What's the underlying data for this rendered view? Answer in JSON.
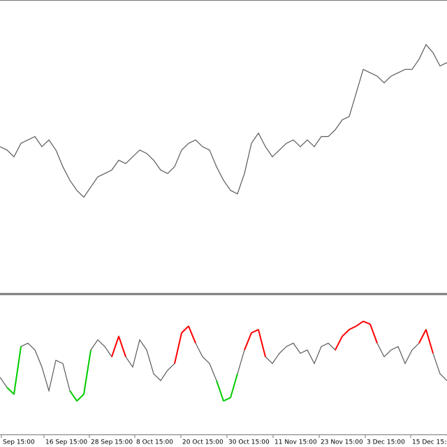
{
  "chart_data": [
    {
      "type": "line",
      "color": "#5a5a5a",
      "xlim": [
        0,
        64
      ],
      "ylim": [
        0,
        100
      ],
      "values": [
        50,
        48.8,
        46.4,
        51.2,
        52.4,
        53.6,
        50,
        52.4,
        48.8,
        42.9,
        38.1,
        34.5,
        32.1,
        35.7,
        39.3,
        40.5,
        41.7,
        45.2,
        44,
        46.4,
        48.8,
        47.6,
        45.2,
        41.7,
        40.5,
        42.9,
        48.8,
        51.2,
        52.4,
        50,
        48.8,
        42.9,
        38.1,
        34.5,
        33.3,
        40.5,
        51.2,
        54.8,
        50,
        46.4,
        48.8,
        51.2,
        52.4,
        50,
        52.4,
        50,
        53.6,
        53.6,
        56,
        59.5,
        60.7,
        69,
        77.4,
        76.2,
        75,
        72.6,
        75,
        76.2,
        77.4,
        77.4,
        81,
        86.2,
        83.3,
        78.6,
        79.8
      ]
    },
    {
      "type": "line",
      "color": "#5a5a5a",
      "xlim": [
        0,
        64
      ],
      "ylim": [
        0,
        100
      ],
      "values": [
        41,
        33.3,
        28.2,
        64.1,
        66.7,
        61.5,
        48.7,
        30.8,
        53.8,
        51.3,
        30.8,
        23.1,
        28.2,
        61.5,
        69.2,
        64.1,
        56.4,
        71.8,
        56.4,
        48.7,
        69.2,
        61.5,
        43.6,
        38.5,
        46.2,
        51.3,
        74.4,
        79.5,
        66.7,
        56.4,
        51.3,
        38.5,
        23.1,
        25.6,
        43.6,
        61.5,
        74.4,
        76.9,
        56.4,
        51.3,
        59,
        64.1,
        66.7,
        59,
        61.5,
        51.3,
        64.1,
        66.7,
        61.5,
        71.8,
        76.9,
        79.5,
        83.1,
        81,
        66.7,
        56.4,
        61.5,
        64.1,
        51.3,
        61.5,
        66.7,
        76.9,
        59,
        43.6,
        38.5
      ],
      "point_colors": [
        "#5a5a5a",
        "#5a5a5a",
        "#00cc00",
        "#5a5a5a",
        "#5a5a5a",
        "#5a5a5a",
        "#5a5a5a",
        "#5a5a5a",
        "#5a5a5a",
        "#5a5a5a",
        "#5a5a5a",
        "#00cc00",
        "#00cc00",
        "#5a5a5a",
        "#5a5a5a",
        "#5a5a5a",
        "#5a5a5a",
        "#ff0000",
        "#5a5a5a",
        "#5a5a5a",
        "#5a5a5a",
        "#5a5a5a",
        "#5a5a5a",
        "#5a5a5a",
        "#5a5a5a",
        "#5a5a5a",
        "#ff0000",
        "#ff0000",
        "#5a5a5a",
        "#5a5a5a",
        "#5a5a5a",
        "#5a5a5a",
        "#00cc00",
        "#00cc00",
        "#5a5a5a",
        "#5a5a5a",
        "#ff0000",
        "#ff0000",
        "#5a5a5a",
        "#5a5a5a",
        "#5a5a5a",
        "#5a5a5a",
        "#5a5a5a",
        "#5a5a5a",
        "#5a5a5a",
        "#5a5a5a",
        "#5a5a5a",
        "#5a5a5a",
        "#5a5a5a",
        "#ff0000",
        "#ff0000",
        "#ff0000",
        "#ff0000",
        "#ff0000",
        "#5a5a5a",
        "#5a5a5a",
        "#5a5a5a",
        "#5a5a5a",
        "#5a5a5a",
        "#5a5a5a",
        "#5a5a5a",
        "#ff0000",
        "#5a5a5a",
        "#5a5a5a",
        "#5a5a5a"
      ],
      "xticks": [
        {
          "value": 0.2,
          "label": "Sep 15:00"
        },
        {
          "value": 6.3,
          "label": "16 Sep 15:00"
        },
        {
          "value": 12.8,
          "label": "28 Sep 15:00"
        },
        {
          "value": 19.3,
          "label": "8 Oct 15:00"
        },
        {
          "value": 25.9,
          "label": "20 Oct 15:00"
        },
        {
          "value": 32.5,
          "label": "30 Oct 15:00"
        },
        {
          "value": 39.1,
          "label": "11 Nov 15:00"
        },
        {
          "value": 45.7,
          "label": "23 Nov 15:00"
        },
        {
          "value": 52.3,
          "label": "3 Dec 15:00"
        },
        {
          "value": 58.8,
          "label": "15 Dec 15:00"
        }
      ]
    }
  ]
}
